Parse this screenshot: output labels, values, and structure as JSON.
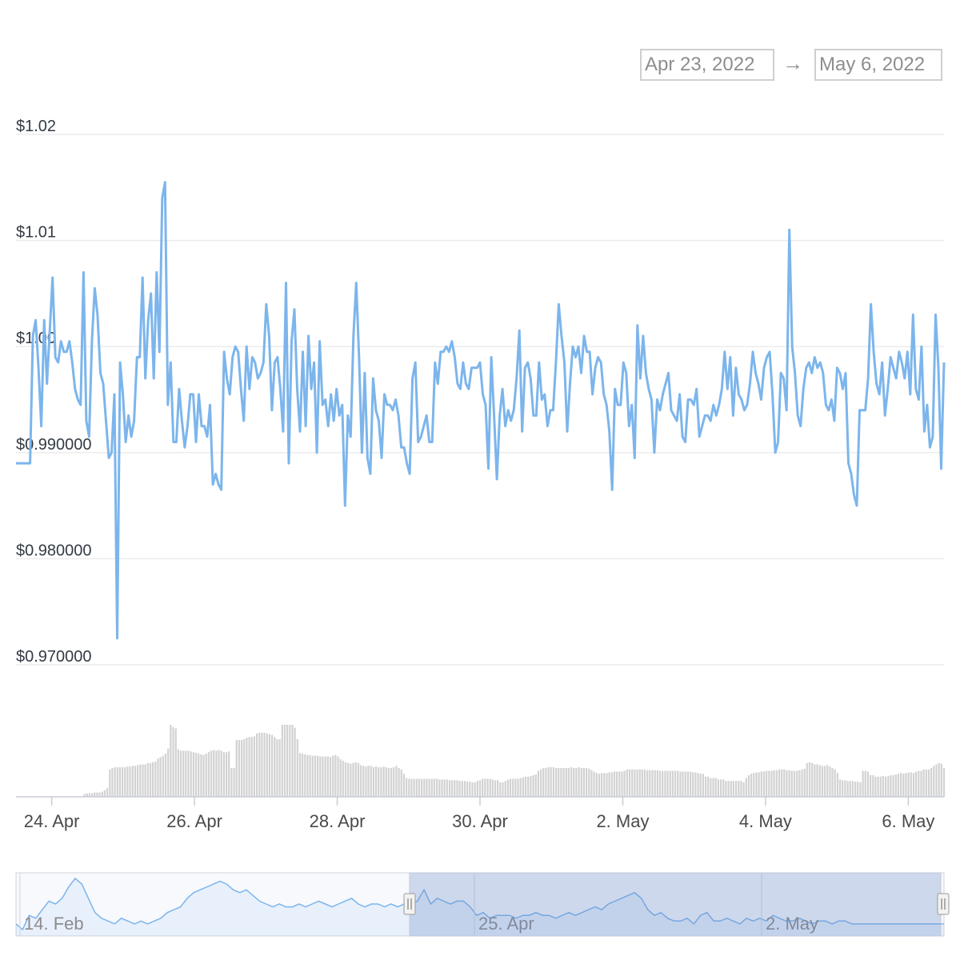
{
  "range_selector": {
    "from": "Apr 23, 2022",
    "arrow": "→",
    "to": "May 6, 2022"
  },
  "colors": {
    "line": "#7cb5ec",
    "volume": "#d2d2d2",
    "grid": "#ececec",
    "navigator_mask": "rgba(102,133,194,0.28)"
  },
  "chart_data": {
    "type": "line",
    "title": "",
    "xlabel": "",
    "ylabel": "",
    "y_tick_labels": [
      "$1.02",
      "$1.01",
      "$1.00",
      "$0.990000",
      "$0.980000",
      "$0.970000"
    ],
    "y_ticks": [
      1.02,
      1.01,
      1.0,
      0.99,
      0.98,
      0.97
    ],
    "ylim": [
      0.97,
      1.02
    ],
    "x_tick_labels": [
      "24. Apr",
      "26. Apr",
      "28. Apr",
      "30. Apr",
      "2. May",
      "4. May",
      "6. May"
    ],
    "x_ticks": [
      "2022-04-24",
      "2022-04-26",
      "2022-04-28",
      "2022-04-30",
      "2022-05-02",
      "2022-05-04",
      "2022-05-06"
    ],
    "xlim": [
      "2022-04-23T12:00",
      "2022-05-06T12:00"
    ],
    "grid": true,
    "series": [
      {
        "kind": "price",
        "x_start": "2022-04-23T12:00",
        "x_end": "2022-05-06T12:00",
        "values": [
          0.989,
          0.989,
          0.989,
          0.989,
          0.989,
          0.989,
          1.001,
          1.0025,
          0.998,
          0.9925,
          1.0025,
          0.9965,
          1.0015,
          1.0065,
          0.999,
          0.9985,
          1.0005,
          0.9995,
          0.9995,
          1.0005,
          0.9985,
          0.996,
          0.995,
          0.9945,
          1.007,
          0.993,
          0.9915,
          1.0005,
          1.0055,
          1.003,
          0.9975,
          0.9965,
          0.993,
          0.9895,
          0.99,
          0.9955,
          0.9725,
          0.9985,
          0.9955,
          0.991,
          0.9935,
          0.9915,
          0.993,
          0.999,
          0.999,
          1.0065,
          0.997,
          1.0025,
          1.005,
          0.997,
          1.007,
          0.9995,
          1.014,
          1.0155,
          0.9945,
          0.9985,
          0.991,
          0.991,
          0.996,
          0.993,
          0.9905,
          0.9925,
          0.9955,
          0.9955,
          0.991,
          0.9955,
          0.9925,
          0.9925,
          0.9915,
          0.9945,
          0.987,
          0.988,
          0.987,
          0.9865,
          0.9995,
          0.997,
          0.9955,
          0.999,
          1.0,
          0.9995,
          0.996,
          0.993,
          1.0,
          0.996,
          0.999,
          0.9985,
          0.997,
          0.9975,
          0.9985,
          1.004,
          1.001,
          0.994,
          0.9985,
          0.999,
          0.996,
          0.992,
          1.006,
          0.989,
          1.0005,
          1.0035,
          0.996,
          0.992,
          0.9995,
          0.9925,
          1.001,
          0.996,
          0.9985,
          0.99,
          1.0005,
          0.9945,
          0.995,
          0.9925,
          0.9955,
          0.993,
          0.996,
          0.9935,
          0.9945,
          0.985,
          0.9935,
          0.9915,
          1.001,
          1.006,
          0.999,
          0.99,
          0.9975,
          0.9895,
          0.988,
          0.997,
          0.994,
          0.993,
          0.9895,
          0.9955,
          0.9945,
          0.9945,
          0.994,
          0.995,
          0.9935,
          0.9905,
          0.9905,
          0.989,
          0.988,
          0.997,
          0.9985,
          0.991,
          0.9915,
          0.9925,
          0.9935,
          0.991,
          0.991,
          0.9985,
          0.9965,
          0.9995,
          0.9995,
          1.0,
          0.9995,
          1.0005,
          0.999,
          0.9965,
          0.996,
          0.9985,
          0.9965,
          0.996,
          0.998,
          0.998,
          0.998,
          0.9985,
          0.9955,
          0.9945,
          0.9885,
          0.999,
          0.9935,
          0.9875,
          0.9935,
          0.996,
          0.9925,
          0.994,
          0.993,
          0.994,
          0.997,
          1.0015,
          0.992,
          0.998,
          0.9985,
          0.997,
          0.9935,
          0.9935,
          0.9985,
          0.995,
          0.9955,
          0.9925,
          0.994,
          0.994,
          0.9985,
          1.004,
          1.001,
          0.9985,
          0.992,
          0.9965,
          1.0,
          0.999,
          1.0,
          0.9975,
          1.001,
          0.9995,
          0.9995,
          0.9955,
          0.998,
          0.999,
          0.9985,
          0.9955,
          0.9945,
          0.992,
          0.9865,
          0.996,
          0.9945,
          0.9945,
          0.9985,
          0.9975,
          0.9925,
          0.9945,
          0.9895,
          1.002,
          0.997,
          1.001,
          0.9975,
          0.996,
          0.995,
          0.99,
          0.995,
          0.994,
          0.9955,
          0.9965,
          0.9975,
          0.994,
          0.9935,
          0.993,
          0.9955,
          0.9915,
          0.991,
          0.995,
          0.995,
          0.9945,
          0.996,
          0.9915,
          0.9925,
          0.9935,
          0.9935,
          0.993,
          0.9945,
          0.9935,
          0.9945,
          0.996,
          0.9995,
          0.996,
          0.999,
          0.9935,
          0.998,
          0.9955,
          0.995,
          0.994,
          0.9945,
          0.9965,
          0.9995,
          0.9975,
          0.9965,
          0.995,
          0.998,
          0.999,
          0.9995,
          0.9955,
          0.99,
          0.991,
          0.9975,
          0.997,
          0.994,
          1.011,
          1.0,
          0.9975,
          0.9935,
          0.9925,
          0.996,
          0.998,
          0.9985,
          0.9975,
          0.999,
          0.998,
          0.9985,
          0.9975,
          0.9945,
          0.994,
          0.995,
          0.993,
          0.998,
          0.9975,
          0.996,
          0.9975,
          0.989,
          0.988,
          0.986,
          0.985,
          0.994,
          0.994,
          0.994,
          0.997,
          1.004,
          0.9995,
          0.9965,
          0.9955,
          0.9985,
          0.9935,
          0.996,
          0.999,
          0.998,
          0.997,
          0.9995,
          0.9985,
          0.997,
          0.9995,
          0.9955,
          1.003,
          0.996,
          0.995,
          1.0,
          0.992,
          0.9945,
          0.9905,
          0.9915,
          1.003,
          0.998,
          0.9885,
          0.9985
        ]
      },
      {
        "kind": "volume",
        "x_start": "2022-04-23T12:00",
        "x_end": "2022-05-06T12:00",
        "values": [
          0,
          0,
          0,
          0,
          0,
          0,
          0,
          0,
          0,
          0,
          0,
          0,
          0,
          0,
          0,
          0,
          0,
          0,
          0,
          0,
          0,
          0,
          0,
          0,
          0,
          0,
          0,
          0.04,
          0.05,
          0.05,
          0.05,
          0.06,
          0.06,
          0.06,
          0.07,
          0.09,
          0.12,
          0.38,
          0.4,
          0.41,
          0.41,
          0.41,
          0.41,
          0.41,
          0.42,
          0.42,
          0.43,
          0.43,
          0.44,
          0.45,
          0.45,
          0.45,
          0.47,
          0.47,
          0.48,
          0.49,
          0.53,
          0.55,
          0.57,
          0.6,
          0.67,
          1.0,
          0.97,
          0.95,
          0.66,
          0.64,
          0.64,
          0.64,
          0.64,
          0.63,
          0.62,
          0.61,
          0.6,
          0.59,
          0.58,
          0.6,
          0.62,
          0.64,
          0.65,
          0.64,
          0.65,
          0.64,
          0.62,
          0.62,
          0.63,
          0.4,
          0.4,
          0.79,
          0.79,
          0.79,
          0.8,
          0.82,
          0.83,
          0.83,
          0.84,
          0.88,
          0.89,
          0.89,
          0.89,
          0.88,
          0.87,
          0.86,
          0.83,
          0.8,
          0.8,
          1.0,
          1.0,
          1.0,
          1.0,
          1.0,
          0.96,
          0.8,
          0.61,
          0.6,
          0.59,
          0.58,
          0.58,
          0.57,
          0.57,
          0.57,
          0.56,
          0.56,
          0.56,
          0.56,
          0.55,
          0.57,
          0.58,
          0.56,
          0.52,
          0.5,
          0.48,
          0.47,
          0.46,
          0.47,
          0.48,
          0.47,
          0.44,
          0.43,
          0.42,
          0.43,
          0.43,
          0.41,
          0.42,
          0.41,
          0.41,
          0.42,
          0.41,
          0.4,
          0.4,
          0.41,
          0.43,
          0.4,
          0.38,
          0.32,
          0.26,
          0.25,
          0.25,
          0.25,
          0.25,
          0.25,
          0.25,
          0.25,
          0.25,
          0.25,
          0.25,
          0.25,
          0.25,
          0.24,
          0.24,
          0.24,
          0.24,
          0.23,
          0.23,
          0.23,
          0.23,
          0.22,
          0.22,
          0.22,
          0.21,
          0.21,
          0.2,
          0.2,
          0.22,
          0.23,
          0.25,
          0.25,
          0.25,
          0.25,
          0.24,
          0.23,
          0.23,
          0.2,
          0.2,
          0.22,
          0.24,
          0.25,
          0.25,
          0.25,
          0.25,
          0.26,
          0.27,
          0.28,
          0.28,
          0.29,
          0.3,
          0.31,
          0.36,
          0.38,
          0.4,
          0.4,
          0.41,
          0.41,
          0.41,
          0.4,
          0.4,
          0.4,
          0.4,
          0.4,
          0.4,
          0.41,
          0.4,
          0.4,
          0.41,
          0.4,
          0.4,
          0.4,
          0.39,
          0.37,
          0.35,
          0.33,
          0.32,
          0.33,
          0.33,
          0.33,
          0.34,
          0.34,
          0.35,
          0.35,
          0.35,
          0.35,
          0.36,
          0.38,
          0.38,
          0.38,
          0.38,
          0.38,
          0.38,
          0.38,
          0.38,
          0.37,
          0.37,
          0.37,
          0.37,
          0.37,
          0.36,
          0.36,
          0.36,
          0.36,
          0.36,
          0.36,
          0.36,
          0.36,
          0.35,
          0.35,
          0.35,
          0.35,
          0.35,
          0.34,
          0.34,
          0.33,
          0.32,
          0.32,
          0.28,
          0.28,
          0.26,
          0.26,
          0.26,
          0.24,
          0.24,
          0.24,
          0.22,
          0.22,
          0.22,
          0.22,
          0.22,
          0.22,
          0.22,
          0.2,
          0.26,
          0.3,
          0.32,
          0.33,
          0.34,
          0.34,
          0.35,
          0.35,
          0.36,
          0.36,
          0.36,
          0.37,
          0.37,
          0.38,
          0.38,
          0.38,
          0.37,
          0.37,
          0.36,
          0.36,
          0.36,
          0.37,
          0.38,
          0.39,
          0.47,
          0.48,
          0.47,
          0.45,
          0.45,
          0.44,
          0.43,
          0.43,
          0.44,
          0.42,
          0.4,
          0.38,
          0.33,
          0.24,
          0.23,
          0.23,
          0.22,
          0.22,
          0.22,
          0.21,
          0.21,
          0.2,
          0.36,
          0.36,
          0.35,
          0.3,
          0.3,
          0.28,
          0.28,
          0.28,
          0.29,
          0.28,
          0.29,
          0.3,
          0.3,
          0.31,
          0.32,
          0.33,
          0.32,
          0.33,
          0.34,
          0.34,
          0.33,
          0.35,
          0.36,
          0.36,
          0.38,
          0.38,
          0.38,
          0.4,
          0.43,
          0.45,
          0.47,
          0.46,
          0.4
        ]
      }
    ],
    "navigator": {
      "x_tick_labels": [
        "14. Feb",
        "25. Apr",
        "2. May"
      ],
      "selected_range": [
        "2022-04-23",
        "2022-05-06"
      ],
      "values": [
        0.99,
        0.988,
        0.993,
        0.992,
        0.995,
        0.998,
        0.997,
        0.999,
        1.003,
        1.006,
        1.004,
        0.999,
        0.994,
        0.992,
        0.991,
        0.99,
        0.992,
        0.991,
        0.99,
        0.991,
        0.99,
        0.991,
        0.992,
        0.994,
        0.995,
        0.996,
        0.999,
        1.001,
        1.002,
        1.003,
        1.004,
        1.005,
        1.004,
        1.002,
        1.001,
        1.002,
        1.0,
        0.998,
        0.997,
        0.996,
        0.997,
        0.996,
        0.996,
        0.997,
        0.996,
        0.997,
        0.998,
        0.997,
        0.996,
        0.997,
        0.998,
        0.999,
        0.997,
        0.996,
        0.997,
        0.997,
        0.996,
        0.997,
        0.996,
        0.997,
        0.997,
        0.998,
        1.002,
        0.997,
        0.999,
        0.998,
        0.997,
        0.998,
        0.998,
        0.996,
        0.993,
        0.994,
        0.992,
        0.993,
        0.993,
        0.993,
        0.992,
        0.993,
        0.993,
        0.994,
        0.993,
        0.993,
        0.992,
        0.993,
        0.994,
        0.993,
        0.994,
        0.995,
        0.996,
        0.995,
        0.997,
        0.998,
        0.999,
        1.0,
        1.001,
        0.999,
        0.995,
        0.993,
        0.994,
        0.992,
        0.991,
        0.991,
        0.992,
        0.99,
        0.993,
        0.994,
        0.991,
        0.991,
        0.992,
        0.991,
        0.99,
        0.992,
        0.991,
        0.992,
        0.991,
        0.993,
        0.992,
        0.991,
        0.991,
        0.992,
        0.991,
        0.99,
        0.991,
        0.991,
        0.99,
        0.991,
        0.991,
        0.99,
        0.99,
        0.99,
        0.99,
        0.99,
        0.99,
        0.99,
        0.99,
        0.99,
        0.99,
        0.99,
        0.99,
        0.99,
        0.99,
        0.99
      ]
    }
  }
}
